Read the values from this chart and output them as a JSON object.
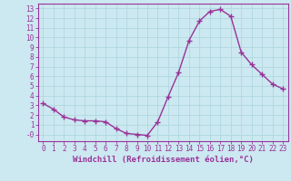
{
  "x": [
    0,
    1,
    2,
    3,
    4,
    5,
    6,
    7,
    8,
    9,
    10,
    11,
    12,
    13,
    14,
    15,
    16,
    17,
    18,
    19,
    20,
    21,
    22,
    23
  ],
  "y": [
    3.2,
    2.6,
    1.8,
    1.5,
    1.4,
    1.4,
    1.3,
    0.6,
    0.1,
    0.0,
    -0.1,
    1.3,
    3.9,
    6.4,
    9.7,
    11.7,
    12.7,
    12.9,
    12.2,
    8.5,
    7.2,
    6.2,
    5.2,
    4.7
  ],
  "line_color": "#993399",
  "marker": "+",
  "markersize": 4,
  "linewidth": 1.0,
  "bg_color": "#cce8f0",
  "grid_color": "#b0d8e0",
  "xlabel": "Windchill (Refroidissement éolien,°C)",
  "ylabel": "",
  "xlim": [
    -0.5,
    23.5
  ],
  "ylim": [
    -0.7,
    13.5
  ],
  "xticks": [
    0,
    1,
    2,
    3,
    4,
    5,
    6,
    7,
    8,
    9,
    10,
    11,
    12,
    13,
    14,
    15,
    16,
    17,
    18,
    19,
    20,
    21,
    22,
    23
  ],
  "yticks": [
    0,
    1,
    2,
    3,
    4,
    5,
    6,
    7,
    8,
    9,
    10,
    11,
    12,
    13
  ],
  "ytick_labels": [
    "-0",
    "1",
    "2",
    "3",
    "4",
    "5",
    "6",
    "7",
    "8",
    "9",
    "10",
    "11",
    "12",
    "13"
  ],
  "axis_color": "#993399",
  "tick_color": "#993399",
  "tick_fontsize": 5.5,
  "xlabel_fontsize": 6.5
}
